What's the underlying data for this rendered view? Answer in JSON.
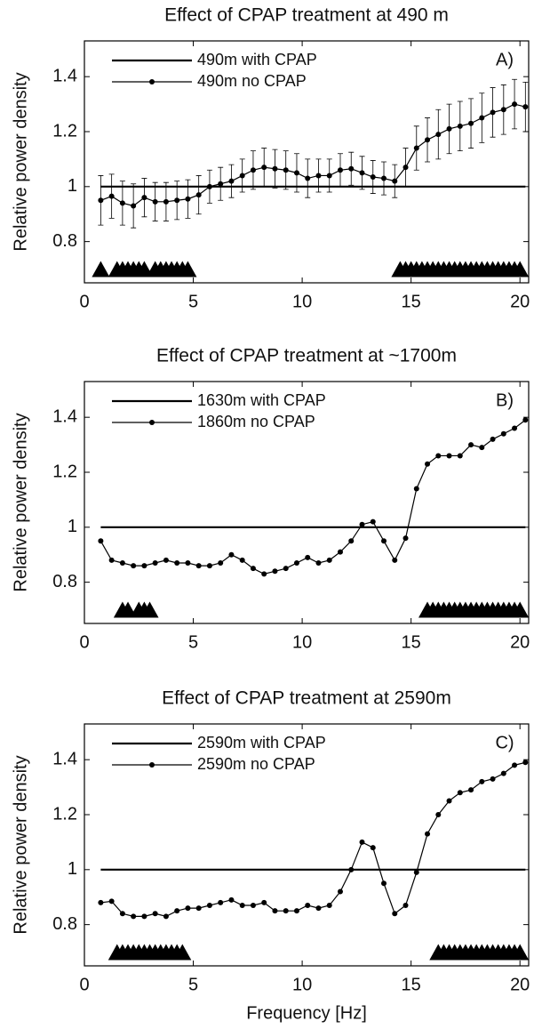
{
  "chart_data": [
    {
      "type": "line",
      "title": "Effect of CPAP treatment at 490 m",
      "ylabel": "Relative power density",
      "panel_label": "A)",
      "x": [
        0.75,
        1.25,
        1.75,
        2.25,
        2.75,
        3.25,
        3.75,
        4.25,
        4.75,
        5.25,
        5.75,
        6.25,
        6.75,
        7.25,
        7.75,
        8.25,
        8.75,
        9.25,
        9.75,
        10.25,
        10.75,
        11.25,
        11.75,
        12.25,
        12.75,
        13.25,
        13.75,
        14.25,
        14.75,
        15.25,
        15.75,
        16.25,
        16.75,
        17.25,
        17.75,
        18.25,
        18.75,
        19.25,
        19.75,
        20.25
      ],
      "series": [
        {
          "name": "490m with CPAP",
          "color": "#000000",
          "x": [
            0.75,
            20.25
          ],
          "values": [
            1,
            1
          ]
        },
        {
          "name": "490m no CPAP",
          "color": "#000000",
          "values": [
            0.95,
            0.965,
            0.94,
            0.93,
            0.96,
            0.945,
            0.945,
            0.95,
            0.955,
            0.97,
            1.0,
            1.01,
            1.02,
            1.04,
            1.06,
            1.07,
            1.065,
            1.06,
            1.05,
            1.03,
            1.04,
            1.04,
            1.06,
            1.065,
            1.05,
            1.035,
            1.03,
            1.02,
            1.07,
            1.14,
            1.17,
            1.19,
            1.21,
            1.22,
            1.23,
            1.25,
            1.27,
            1.28,
            1.3,
            1.29
          ],
          "errors": [
            0.09,
            0.08,
            0.08,
            0.08,
            0.07,
            0.07,
            0.07,
            0.07,
            0.07,
            0.07,
            0.06,
            0.06,
            0.06,
            0.06,
            0.07,
            0.07,
            0.07,
            0.07,
            0.07,
            0.07,
            0.06,
            0.06,
            0.06,
            0.06,
            0.06,
            0.06,
            0.06,
            0.06,
            0.07,
            0.08,
            0.08,
            0.09,
            0.09,
            0.09,
            0.09,
            0.09,
            0.09,
            0.09,
            0.09,
            0.09
          ]
        }
      ],
      "marker_y": 0.7,
      "significant_x": [
        0.75,
        1.5,
        1.75,
        2,
        2.25,
        2.5,
        2.75,
        3.25,
        3.5,
        3.75,
        4,
        4.25,
        4.5,
        4.75,
        14.5,
        14.75,
        15,
        15.25,
        15.5,
        15.75,
        16,
        16.25,
        16.5,
        16.75,
        17,
        17.25,
        17.5,
        17.75,
        18,
        18.25,
        18.5,
        18.75,
        19,
        19.25,
        19.5,
        19.75,
        20
      ],
      "xlim": [
        0,
        20.4
      ],
      "ylim": [
        0.65,
        1.53
      ],
      "xticks": [
        0,
        5,
        10,
        15,
        20
      ],
      "yticks": [
        0.8,
        1,
        1.2,
        1.4
      ]
    },
    {
      "type": "line",
      "title": "Effect of CPAP treatment at ~1700m",
      "ylabel": "Relative power density",
      "panel_label": "B)",
      "x": [
        0.75,
        1.25,
        1.75,
        2.25,
        2.75,
        3.25,
        3.75,
        4.25,
        4.75,
        5.25,
        5.75,
        6.25,
        6.75,
        7.25,
        7.75,
        8.25,
        8.75,
        9.25,
        9.75,
        10.25,
        10.75,
        11.25,
        11.75,
        12.25,
        12.75,
        13.25,
        13.75,
        14.25,
        14.75,
        15.25,
        15.75,
        16.25,
        16.75,
        17.25,
        17.75,
        18.25,
        18.75,
        19.25,
        19.75,
        20.25
      ],
      "series": [
        {
          "name": "1630m with CPAP",
          "color": "#000000",
          "x": [
            0.75,
            20.25
          ],
          "values": [
            1,
            1
          ]
        },
        {
          "name": "1860m no CPAP",
          "color": "#000000",
          "values": [
            0.95,
            0.88,
            0.87,
            0.86,
            0.86,
            0.87,
            0.88,
            0.87,
            0.87,
            0.86,
            0.86,
            0.87,
            0.9,
            0.88,
            0.85,
            0.83,
            0.84,
            0.85,
            0.87,
            0.89,
            0.87,
            0.88,
            0.91,
            0.95,
            1.01,
            1.02,
            0.95,
            0.88,
            0.96,
            1.14,
            1.23,
            1.26,
            1.26,
            1.26,
            1.3,
            1.29,
            1.32,
            1.34,
            1.36,
            1.39
          ]
        }
      ],
      "marker_y": 0.7,
      "significant_x": [
        1.75,
        2,
        2.5,
        2.75,
        3,
        15.75,
        16,
        16.25,
        16.5,
        16.75,
        17,
        17.25,
        17.5,
        17.75,
        18,
        18.25,
        18.5,
        18.75,
        19,
        19.25,
        19.5,
        19.75,
        20
      ],
      "xlim": [
        0,
        20.4
      ],
      "ylim": [
        0.65,
        1.53
      ],
      "xticks": [
        0,
        5,
        10,
        15,
        20
      ],
      "yticks": [
        0.8,
        1,
        1.2,
        1.4
      ]
    },
    {
      "type": "line",
      "title": "Effect of CPAP treatment at 2590m",
      "ylabel": "Relative power density",
      "xlabel": "Frequency [Hz]",
      "panel_label": "C)",
      "x": [
        0.75,
        1.25,
        1.75,
        2.25,
        2.75,
        3.25,
        3.75,
        4.25,
        4.75,
        5.25,
        5.75,
        6.25,
        6.75,
        7.25,
        7.75,
        8.25,
        8.75,
        9.25,
        9.75,
        10.25,
        10.75,
        11.25,
        11.75,
        12.25,
        12.75,
        13.25,
        13.75,
        14.25,
        14.75,
        15.25,
        15.75,
        16.25,
        16.75,
        17.25,
        17.75,
        18.25,
        18.75,
        19.25,
        19.75,
        20.25
      ],
      "series": [
        {
          "name": "2590m with CPAP",
          "color": "#000000",
          "x": [
            0.75,
            20.25
          ],
          "values": [
            1,
            1
          ]
        },
        {
          "name": "2590m no CPAP",
          "color": "#000000",
          "values": [
            0.88,
            0.885,
            0.84,
            0.83,
            0.83,
            0.84,
            0.83,
            0.85,
            0.86,
            0.86,
            0.87,
            0.88,
            0.89,
            0.87,
            0.87,
            0.88,
            0.85,
            0.85,
            0.85,
            0.87,
            0.86,
            0.87,
            0.92,
            1.0,
            1.1,
            1.08,
            0.95,
            0.84,
            0.87,
            0.99,
            1.13,
            1.2,
            1.25,
            1.28,
            1.29,
            1.32,
            1.33,
            1.35,
            1.38,
            1.39
          ]
        }
      ],
      "marker_y": 0.7,
      "significant_x": [
        1.5,
        1.75,
        2,
        2.25,
        2.5,
        2.75,
        3,
        3.25,
        3.5,
        3.75,
        4,
        4.25,
        4.5,
        16.25,
        16.5,
        16.75,
        17,
        17.25,
        17.5,
        17.75,
        18,
        18.25,
        18.5,
        18.75,
        19,
        19.25,
        19.5,
        19.75,
        20
      ],
      "xlim": [
        0,
        20.4
      ],
      "ylim": [
        0.65,
        1.53
      ],
      "xticks": [
        0,
        5,
        10,
        15,
        20
      ],
      "yticks": [
        0.8,
        1,
        1.2,
        1.4
      ]
    }
  ]
}
